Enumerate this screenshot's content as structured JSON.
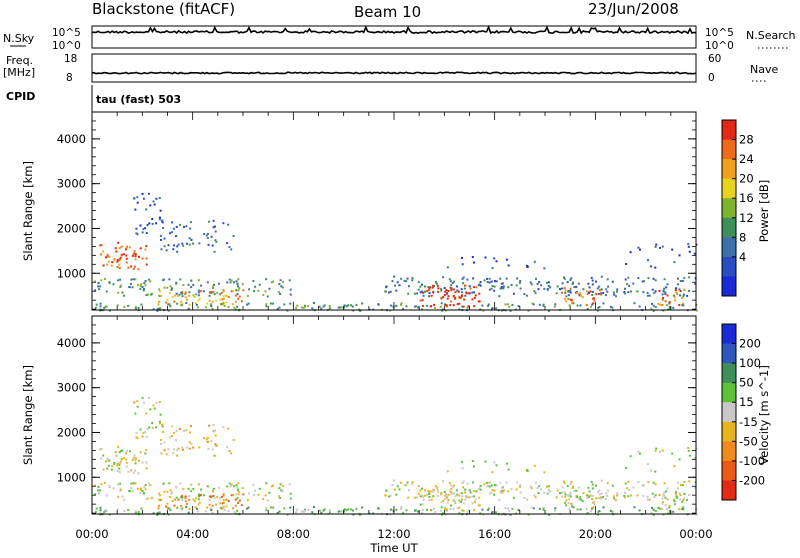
{
  "header": {
    "station": "Blackstone (fitACF)",
    "beam": "Beam 10",
    "date": "23/Jun/2008"
  },
  "left_labels": {
    "nsky": "N.Sky",
    "nsky_top": "10^5",
    "nsky_bottom": "10^0",
    "freq_line1": "Freq.",
    "freq_line2": "[MHz]",
    "freq_top": "18",
    "freq_bottom": "8",
    "cpid": "CPID"
  },
  "right_labels": {
    "nsearch": "N.Search",
    "nsearch_top": "10^5",
    "nsearch_bottom": "10^0",
    "nave": "Nave",
    "nave_top": "60",
    "nave_bottom": "0"
  },
  "cpid_text": "tau (fast) 503",
  "colors": {
    "power": [
      "#1a2ad6",
      "#284cc4",
      "#3d6fa8",
      "#3f8f5a",
      "#7fb32f",
      "#e8d21e",
      "#f0a21c",
      "#ec6a18",
      "#e02a14"
    ],
    "velocity": [
      "#1a2ad6",
      "#2e57bb",
      "#3f8f5a",
      "#5cc23a",
      "#c8c8c8",
      "#e8b41e",
      "#f08a1c",
      "#ec5a18",
      "#e02a14"
    ]
  },
  "chart_data": [
    {
      "type": "heatmap",
      "name": "power",
      "ylabel": "Slant Range [km]",
      "xlabel": "Time UT",
      "ylim": [
        180,
        4600
      ],
      "xlim": [
        0,
        24
      ],
      "x_ticks": [
        "00:00",
        "04:00",
        "08:00",
        "12:00",
        "16:00",
        "20:00",
        "00:00"
      ],
      "y_ticks": [
        "1000",
        "2000",
        "3000",
        "4000"
      ],
      "colorbar_label": "Power [dB]",
      "colorbar_ticks": [
        "4",
        "8",
        "12",
        "16",
        "20",
        "24",
        "28"
      ]
    },
    {
      "type": "heatmap",
      "name": "velocity",
      "ylabel": "Slant Range [km]",
      "xlabel": "Time UT",
      "ylim": [
        180,
        4600
      ],
      "xlim": [
        0,
        24
      ],
      "x_ticks": [
        "00:00",
        "04:00",
        "08:00",
        "12:00",
        "16:00",
        "20:00",
        "00:00"
      ],
      "y_ticks": [
        "1000",
        "2000",
        "3000",
        "4000"
      ],
      "colorbar_label": "Velocity [m s^-1]",
      "colorbar_ticks": [
        "200",
        "100",
        "50",
        "15",
        "-15",
        "-50",
        "-100",
        "-200"
      ]
    }
  ]
}
